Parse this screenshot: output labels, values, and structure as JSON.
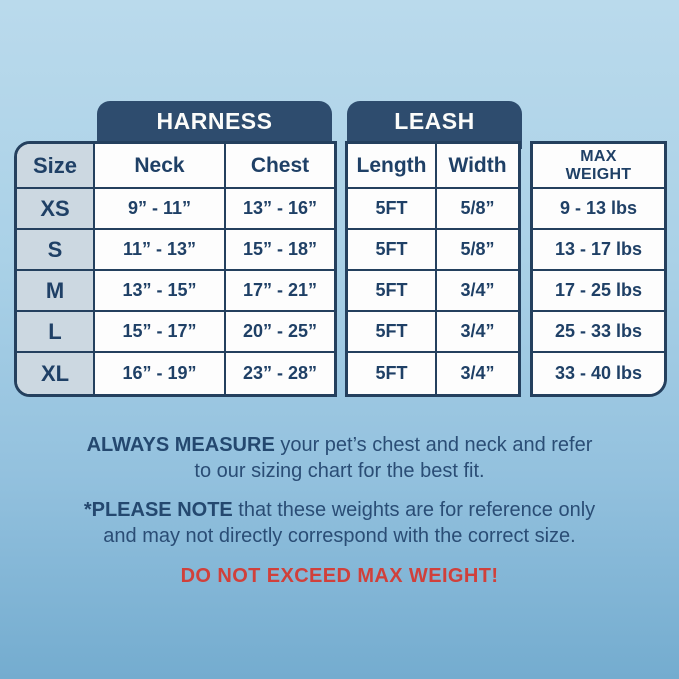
{
  "colors": {
    "background_top": "#badaec",
    "background_bottom": "#74accf",
    "navy_fill": "#2e4c6e",
    "border_navy": "#24405e",
    "text_navy": "#1f4066",
    "size_column_bg": "#ccd8e1",
    "cell_bg": "#fdfdfd",
    "warning_red": "#d0403b"
  },
  "tabs": {
    "harness": "HARNESS",
    "leash": "LEASH"
  },
  "table": {
    "columns": {
      "size": "Size",
      "neck": "Neck",
      "chest": "Chest",
      "length": "Length",
      "width": "Width",
      "max_weight_line1": "MAX",
      "max_weight_line2": "WEIGHT"
    },
    "rows": [
      {
        "size": "XS",
        "neck": "9” - 11”",
        "chest": "13” - 16”",
        "length": "5FT",
        "width": "5/8”",
        "max_weight": "9 - 13 lbs"
      },
      {
        "size": "S",
        "neck": "11” - 13”",
        "chest": "15” - 18”",
        "length": "5FT",
        "width": "5/8”",
        "max_weight": "13 - 17 lbs"
      },
      {
        "size": "M",
        "neck": "13” - 15”",
        "chest": "17” - 21”",
        "length": "5FT",
        "width": "3/4”",
        "max_weight": "17 - 25 lbs"
      },
      {
        "size": "L",
        "neck": "15” - 17”",
        "chest": "20” - 25”",
        "length": "5FT",
        "width": "3/4”",
        "max_weight": "25 - 33 lbs"
      },
      {
        "size": "XL",
        "neck": "16” - 19”",
        "chest": "23” - 28”",
        "length": "5FT",
        "width": "3/4”",
        "max_weight": "33 - 40 lbs"
      }
    ]
  },
  "notes": {
    "measure_line1_bold": "ALWAYS MEASURE",
    "measure_line1_rest": " your pet’s chest and neck and refer",
    "measure_line2": "to our sizing chart for the best fit.",
    "please_line1_bold": "*PLEASE NOTE",
    "please_line1_rest": " that these weights are for reference only",
    "please_line2": "and may not directly correspond with the correct size.",
    "warning": "DO NOT EXCEED MAX WEIGHT!"
  }
}
